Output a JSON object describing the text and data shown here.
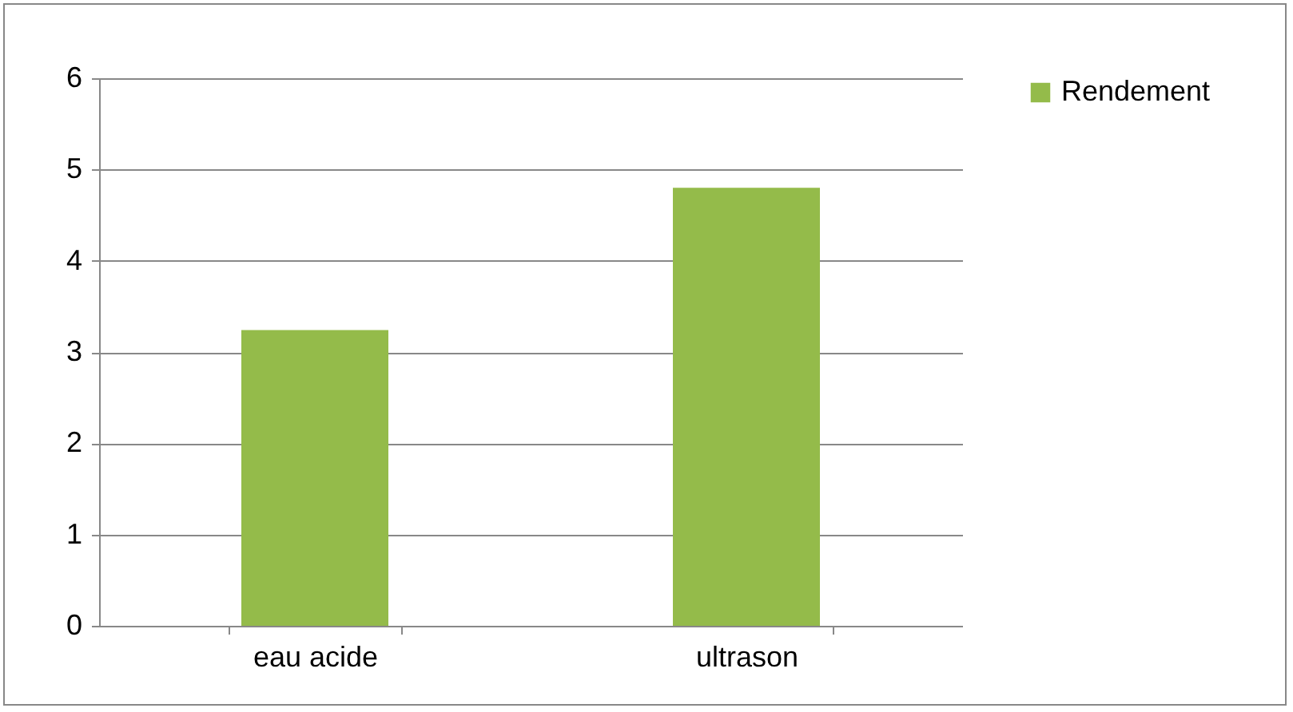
{
  "chart_data": {
    "type": "bar",
    "categories": [
      "eau acide",
      "ultrason"
    ],
    "series": [
      {
        "name": "Rendement",
        "color": "#94bb4a",
        "values": [
          3.24,
          4.8
        ]
      }
    ],
    "ylim": [
      0,
      6
    ],
    "yticks": [
      0,
      1,
      2,
      3,
      4,
      5,
      6
    ],
    "grid": "y",
    "legend": "right"
  }
}
